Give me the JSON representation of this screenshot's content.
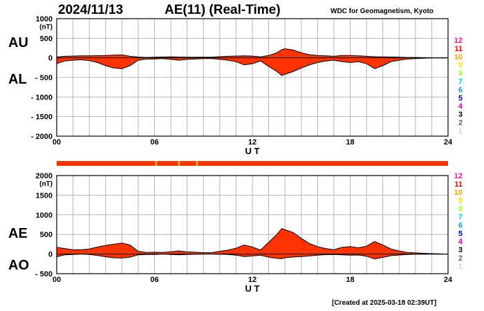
{
  "header": {
    "date": "2024/11/13",
    "title": "AE(11) (Real-Time)",
    "credit": "WDC for Geomagnetism, Kyoto"
  },
  "footer": {
    "created": "[Created at 2025-03-18 02:39UT]"
  },
  "colors": {
    "fill": "#ff3300",
    "line": "#000000",
    "grid": "#b4b4b4",
    "station_bar": "#ff3300",
    "station_bar_gap": "#e8a030"
  },
  "station_scale": [
    "12",
    "11",
    "10",
    "9",
    "8",
    "7",
    "6",
    "5",
    "4",
    "3",
    "2",
    "1"
  ],
  "station_colors": [
    "#ff1493",
    "#ff0000",
    "#ffa500",
    "#ffe000",
    "#adff2f",
    "#00d0d0",
    "#1e90ff",
    "#0000cd",
    "#cc00cc",
    "#000000",
    "#666666",
    "#d0d0d0"
  ],
  "station_bar_gaps_ut": [
    6.1,
    7.5,
    8.6
  ],
  "chart_data": [
    {
      "type": "area",
      "series_labels": [
        "AU",
        "AL"
      ],
      "xlabel": "U T",
      "ylabel_unit": "(nT)",
      "xlim": [
        0,
        24
      ],
      "ylim": [
        -2000,
        1000
      ],
      "x_ticks": [
        "00",
        "06",
        "12",
        "18",
        "24"
      ],
      "y_ticks": [
        "1000",
        "500",
        "0",
        "- 500",
        "- 1000",
        "- 1500",
        "- 2000"
      ],
      "x": [
        0,
        0.5,
        1,
        1.5,
        2,
        2.5,
        3,
        3.5,
        4,
        4.5,
        5,
        5.5,
        6,
        6.5,
        7,
        7.5,
        8,
        8.5,
        9,
        9.5,
        10,
        10.5,
        11,
        11.5,
        12,
        12.5,
        13,
        13.5,
        13.8,
        14,
        14.5,
        15,
        15.5,
        16,
        16.5,
        17,
        17.5,
        18,
        18.5,
        19,
        19.5,
        20,
        20.5,
        21,
        21.5,
        22,
        22.5,
        23,
        23.5,
        24
      ],
      "au": [
        20,
        40,
        45,
        50,
        50,
        55,
        60,
        70,
        75,
        40,
        20,
        10,
        15,
        20,
        25,
        20,
        15,
        15,
        15,
        15,
        30,
        40,
        45,
        50,
        45,
        25,
        60,
        130,
        210,
        230,
        200,
        130,
        80,
        60,
        50,
        40,
        60,
        60,
        50,
        40,
        30,
        25,
        20,
        15,
        10,
        10,
        5,
        5,
        0,
        0
      ],
      "al": [
        -150,
        -80,
        -60,
        -50,
        -70,
        -120,
        -200,
        -260,
        -280,
        -200,
        -60,
        -30,
        -30,
        -20,
        -40,
        -60,
        -40,
        -30,
        -20,
        -20,
        -40,
        -60,
        -100,
        -180,
        -150,
        -80,
        -220,
        -350,
        -450,
        -420,
        -350,
        -260,
        -180,
        -120,
        -80,
        -60,
        -100,
        -120,
        -100,
        -150,
        -280,
        -200,
        -100,
        -60,
        -30,
        -20,
        -10,
        -5,
        0,
        0
      ]
    },
    {
      "type": "area",
      "series_labels": [
        "AE",
        "AO"
      ],
      "xlabel": "U T",
      "ylabel_unit": "(nT)",
      "xlim": [
        0,
        24
      ],
      "ylim": [
        -500,
        2000
      ],
      "x_ticks": [
        "00",
        "06",
        "12",
        "18",
        "24"
      ],
      "y_ticks": [
        "2000",
        "1500",
        "1000",
        "500",
        "0",
        "- 500"
      ],
      "x": [
        0,
        0.5,
        1,
        1.5,
        2,
        2.5,
        3,
        3.5,
        4,
        4.5,
        5,
        5.5,
        6,
        6.5,
        7,
        7.5,
        8,
        8.5,
        9,
        9.5,
        10,
        10.5,
        11,
        11.5,
        12,
        12.5,
        13,
        13.5,
        13.8,
        14,
        14.5,
        15,
        15.5,
        16,
        16.5,
        17,
        17.5,
        18,
        18.5,
        19,
        19.5,
        20,
        20.5,
        21,
        21.5,
        22,
        22.5,
        23,
        23.5,
        24
      ],
      "ae": [
        170,
        140,
        110,
        110,
        130,
        180,
        220,
        250,
        280,
        230,
        70,
        40,
        45,
        40,
        60,
        80,
        55,
        45,
        35,
        35,
        70,
        100,
        150,
        230,
        180,
        100,
        300,
        500,
        650,
        620,
        550,
        400,
        270,
        190,
        140,
        110,
        170,
        190,
        160,
        200,
        320,
        230,
        130,
        80,
        40,
        30,
        20,
        10,
        5,
        0
      ],
      "ao": [
        -70,
        -20,
        -10,
        0,
        -10,
        -35,
        -70,
        -95,
        -100,
        -80,
        -20,
        -10,
        -10,
        0,
        -10,
        -20,
        -10,
        -5,
        0,
        0,
        -5,
        -10,
        -30,
        -65,
        -50,
        -30,
        -80,
        -110,
        -120,
        -95,
        -75,
        -65,
        -50,
        -30,
        -15,
        -10,
        -20,
        -30,
        -25,
        -55,
        -125,
        -85,
        -40,
        -25,
        -10,
        -5,
        -3,
        0,
        -3,
        0
      ]
    }
  ]
}
